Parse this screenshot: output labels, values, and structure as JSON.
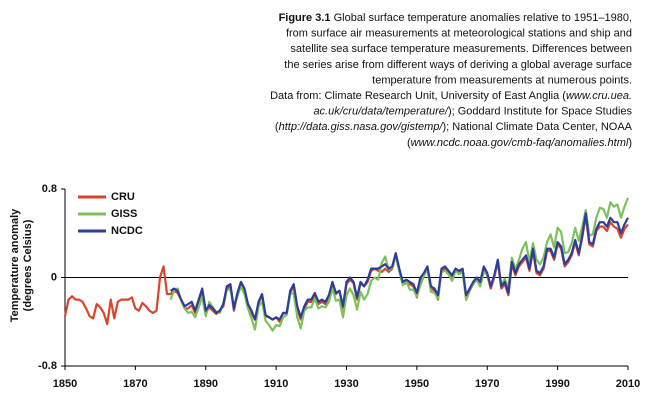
{
  "caption": {
    "figure": "Figure 3.1",
    "lines": [
      [
        {
          "text": " Global surface temperature anomalies relative to 1951–1980,"
        }
      ],
      [
        {
          "text": "from surface air measurements at meteorological stations and ship and"
        }
      ],
      [
        {
          "text": "satellite sea surface temperature measurements. Differences between"
        }
      ],
      [
        {
          "text": "the series arise from different ways of deriving a global average surface"
        }
      ],
      [
        {
          "text": "temperature from measurements at numerous points."
        }
      ],
      [
        {
          "text": "Data from: Climate Research Unit, University of East Anglia ("
        },
        {
          "text": "www.cru.uea.",
          "italic": true
        }
      ],
      [
        {
          "text": "ac.uk/cru/data/temperature/",
          "italic": true
        },
        {
          "text": "); Goddard Institute for Space Studies"
        }
      ],
      [
        {
          "text": "("
        },
        {
          "text": "http://data.giss.nasa.gov/gistemp/",
          "italic": true
        },
        {
          "text": "); National Climate Data Center, NOAA"
        }
      ],
      [
        {
          "text": "("
        },
        {
          "text": "www.ncdc.noaa.gov/cmb-faq/anomalies.html",
          "italic": true
        },
        {
          "text": ")"
        }
      ]
    ]
  },
  "chart_data": {
    "type": "line",
    "ylabel": [
      "Temperature anomaly",
      "(degrees Celsius)"
    ],
    "x": [
      1850,
      1851,
      1852,
      1853,
      1854,
      1855,
      1856,
      1857,
      1858,
      1859,
      1860,
      1861,
      1862,
      1863,
      1864,
      1865,
      1866,
      1867,
      1868,
      1869,
      1870,
      1871,
      1872,
      1873,
      1874,
      1875,
      1876,
      1877,
      1878,
      1879,
      1880,
      1881,
      1882,
      1883,
      1884,
      1885,
      1886,
      1887,
      1888,
      1889,
      1890,
      1891,
      1892,
      1893,
      1894,
      1895,
      1896,
      1897,
      1898,
      1899,
      1900,
      1901,
      1902,
      1903,
      1904,
      1905,
      1906,
      1907,
      1908,
      1909,
      1910,
      1911,
      1912,
      1913,
      1914,
      1915,
      1916,
      1917,
      1918,
      1919,
      1920,
      1921,
      1922,
      1923,
      1924,
      1925,
      1926,
      1927,
      1928,
      1929,
      1930,
      1931,
      1932,
      1933,
      1934,
      1935,
      1936,
      1937,
      1938,
      1939,
      1940,
      1941,
      1942,
      1943,
      1944,
      1945,
      1946,
      1947,
      1948,
      1949,
      1950,
      1951,
      1952,
      1953,
      1954,
      1955,
      1956,
      1957,
      1958,
      1959,
      1960,
      1961,
      1962,
      1963,
      1964,
      1965,
      1966,
      1967,
      1968,
      1969,
      1970,
      1971,
      1972,
      1973,
      1974,
      1975,
      1976,
      1977,
      1978,
      1979,
      1980,
      1981,
      1982,
      1983,
      1984,
      1985,
      1986,
      1987,
      1988,
      1989,
      1990,
      1991,
      1992,
      1993,
      1994,
      1995,
      1996,
      1997,
      1998,
      1999,
      2000,
      2001,
      2002,
      2003,
      2004,
      2005,
      2006,
      2007,
      2008,
      2009,
      2010
    ],
    "series": [
      {
        "name": "CRU",
        "color": "#d9452b",
        "values": [
          -0.35,
          -0.2,
          -0.17,
          -0.2,
          -0.2,
          -0.22,
          -0.28,
          -0.35,
          -0.37,
          -0.24,
          -0.27,
          -0.32,
          -0.42,
          -0.2,
          -0.37,
          -0.22,
          -0.2,
          -0.2,
          -0.2,
          -0.18,
          -0.28,
          -0.3,
          -0.23,
          -0.26,
          -0.3,
          -0.32,
          -0.3,
          0.0,
          0.1,
          -0.15,
          -0.15,
          -0.12,
          -0.14,
          -0.2,
          -0.28,
          -0.28,
          -0.25,
          -0.32,
          -0.22,
          -0.12,
          -0.32,
          -0.27,
          -0.3,
          -0.33,
          -0.3,
          -0.26,
          -0.1,
          -0.08,
          -0.3,
          -0.15,
          -0.05,
          -0.12,
          -0.25,
          -0.32,
          -0.38,
          -0.23,
          -0.16,
          -0.35,
          -0.36,
          -0.38,
          -0.36,
          -0.4,
          -0.32,
          -0.33,
          -0.14,
          -0.08,
          -0.28,
          -0.38,
          -0.28,
          -0.22,
          -0.22,
          -0.15,
          -0.24,
          -0.22,
          -0.24,
          -0.18,
          -0.06,
          -0.15,
          -0.12,
          -0.28,
          -0.06,
          -0.02,
          -0.05,
          -0.2,
          -0.05,
          -0.08,
          -0.04,
          0.06,
          0.08,
          0.06,
          0.05,
          0.08,
          0.05,
          0.08,
          0.2,
          0.06,
          -0.06,
          -0.05,
          -0.06,
          -0.08,
          -0.18,
          -0.02,
          0.02,
          0.08,
          -0.1,
          -0.12,
          -0.2,
          0.06,
          0.08,
          0.04,
          0.0,
          0.06,
          0.05,
          0.07,
          -0.2,
          -0.12,
          -0.06,
          -0.02,
          -0.04,
          0.08,
          0.02,
          -0.1,
          0.0,
          0.14,
          -0.1,
          -0.06,
          -0.16,
          0.12,
          0.02,
          0.1,
          0.14,
          0.18,
          0.06,
          0.24,
          0.04,
          0.02,
          0.08,
          0.24,
          0.24,
          0.16,
          0.3,
          0.26,
          0.1,
          0.14,
          0.2,
          0.32,
          0.2,
          0.36,
          0.56,
          0.3,
          0.28,
          0.42,
          0.46,
          0.46,
          0.42,
          0.5,
          0.46,
          0.44,
          0.36,
          0.44,
          0.48
        ]
      },
      {
        "name": "GISS",
        "color": "#7dc15a",
        "values": [
          null,
          null,
          null,
          null,
          null,
          null,
          null,
          null,
          null,
          null,
          null,
          null,
          null,
          null,
          null,
          null,
          null,
          null,
          null,
          null,
          null,
          null,
          null,
          null,
          null,
          null,
          null,
          null,
          null,
          null,
          -0.2,
          -0.12,
          -0.1,
          -0.21,
          -0.28,
          -0.32,
          -0.31,
          -0.36,
          -0.27,
          -0.17,
          -0.35,
          -0.22,
          -0.27,
          -0.31,
          -0.32,
          -0.23,
          -0.11,
          -0.11,
          -0.27,
          -0.17,
          -0.08,
          -0.15,
          -0.28,
          -0.37,
          -0.47,
          -0.26,
          -0.22,
          -0.39,
          -0.43,
          -0.48,
          -0.43,
          -0.44,
          -0.36,
          -0.34,
          -0.15,
          -0.14,
          -0.36,
          -0.46,
          -0.3,
          -0.27,
          -0.27,
          -0.19,
          -0.28,
          -0.26,
          -0.27,
          -0.22,
          -0.1,
          -0.21,
          -0.2,
          -0.36,
          -0.16,
          -0.1,
          -0.16,
          -0.29,
          -0.13,
          -0.2,
          -0.15,
          -0.03,
          0.0,
          -0.02,
          0.13,
          0.19,
          0.07,
          0.09,
          0.2,
          0.06,
          -0.07,
          -0.03,
          -0.11,
          -0.11,
          -0.17,
          -0.07,
          0.01,
          0.08,
          -0.13,
          -0.14,
          -0.19,
          0.05,
          0.06,
          0.03,
          -0.03,
          0.06,
          0.03,
          0.05,
          -0.2,
          -0.11,
          -0.06,
          -0.02,
          -0.08,
          0.05,
          0.03,
          -0.08,
          0.01,
          0.16,
          -0.07,
          -0.01,
          -0.1,
          0.18,
          0.07,
          0.16,
          0.26,
          0.32,
          0.14,
          0.31,
          0.16,
          0.12,
          0.18,
          0.32,
          0.39,
          0.27,
          0.45,
          0.41,
          0.22,
          0.23,
          0.31,
          0.45,
          0.33,
          0.46,
          0.61,
          0.38,
          0.39,
          0.54,
          0.63,
          0.62,
          0.54,
          0.68,
          0.64,
          0.66,
          0.54,
          0.64,
          0.72
        ]
      },
      {
        "name": "NCDC",
        "color": "#2c3e9c",
        "values": [
          null,
          null,
          null,
          null,
          null,
          null,
          null,
          null,
          null,
          null,
          null,
          null,
          null,
          null,
          null,
          null,
          null,
          null,
          null,
          null,
          null,
          null,
          null,
          null,
          null,
          null,
          null,
          null,
          null,
          null,
          -0.12,
          -0.1,
          -0.12,
          -0.2,
          -0.26,
          -0.24,
          -0.22,
          -0.3,
          -0.2,
          -0.1,
          -0.3,
          -0.25,
          -0.28,
          -0.32,
          -0.3,
          -0.24,
          -0.08,
          -0.06,
          -0.28,
          -0.14,
          -0.04,
          -0.1,
          -0.24,
          -0.3,
          -0.38,
          -0.22,
          -0.15,
          -0.34,
          -0.36,
          -0.38,
          -0.36,
          -0.38,
          -0.32,
          -0.32,
          -0.12,
          -0.06,
          -0.26,
          -0.36,
          -0.26,
          -0.2,
          -0.2,
          -0.14,
          -0.22,
          -0.2,
          -0.22,
          -0.16,
          -0.04,
          -0.14,
          -0.12,
          -0.26,
          -0.04,
          0.0,
          -0.04,
          -0.18,
          -0.04,
          -0.08,
          -0.02,
          0.08,
          0.08,
          0.08,
          0.1,
          0.12,
          0.08,
          0.1,
          0.22,
          0.08,
          -0.04,
          -0.02,
          -0.04,
          -0.06,
          -0.14,
          0.0,
          0.04,
          0.1,
          -0.08,
          -0.1,
          -0.16,
          0.08,
          0.1,
          0.06,
          0.02,
          0.08,
          0.06,
          0.08,
          -0.16,
          -0.1,
          -0.04,
          0.0,
          -0.04,
          0.1,
          0.04,
          -0.08,
          0.02,
          0.16,
          -0.08,
          -0.04,
          -0.14,
          0.14,
          0.04,
          0.12,
          0.16,
          0.2,
          0.08,
          0.26,
          0.06,
          0.04,
          0.1,
          0.26,
          0.26,
          0.18,
          0.32,
          0.28,
          0.12,
          0.16,
          0.22,
          0.34,
          0.22,
          0.38,
          0.58,
          0.32,
          0.3,
          0.44,
          0.5,
          0.5,
          0.46,
          0.54,
          0.5,
          0.5,
          0.4,
          0.48,
          0.54
        ]
      }
    ],
    "xlim": [
      1850,
      2010
    ],
    "xticks": [
      1850,
      1870,
      1890,
      1910,
      1930,
      1950,
      1970,
      1990,
      2010
    ],
    "ylim": [
      -0.8,
      0.8
    ],
    "yticks": [
      -0.8,
      0,
      0.8
    ],
    "zero_line": true,
    "legend": "upper left"
  }
}
